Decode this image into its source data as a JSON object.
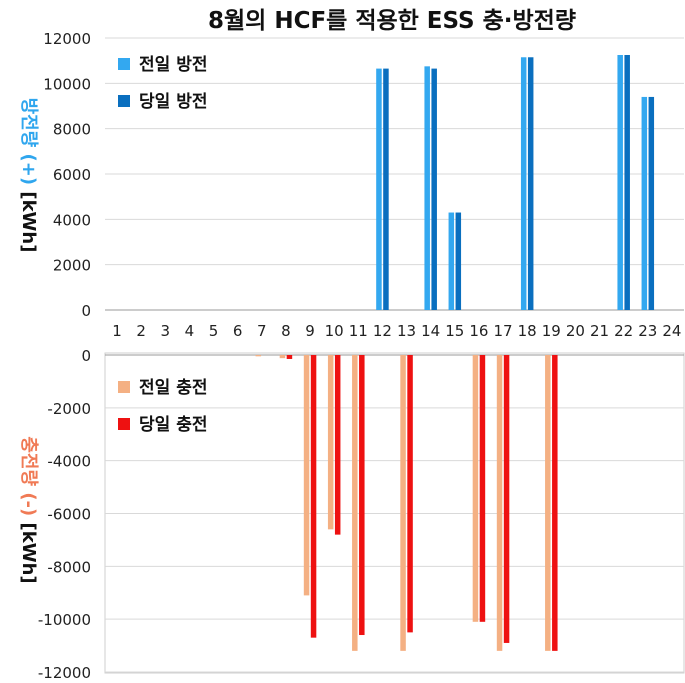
{
  "chart_data": {
    "title": "8월의 HCF를 적용한 ESS 충·방전량",
    "categories": [
      "1",
      "2",
      "3",
      "4",
      "5",
      "6",
      "7",
      "8",
      "9",
      "10",
      "11",
      "12",
      "13",
      "14",
      "15",
      "16",
      "17",
      "18",
      "19",
      "20",
      "21",
      "22",
      "23",
      "24"
    ],
    "panels": [
      {
        "type": "bar",
        "ylabel_part1": "방전량",
        "ylabel_part2": "(+)",
        "ylabel_unit": "[kWh]",
        "ylim": [
          0,
          12000
        ],
        "yticks": [
          0,
          2000,
          4000,
          6000,
          8000,
          10000,
          12000
        ],
        "legend_position": "top-left",
        "colors": {
          "ylabel": "#2fa6ee"
        },
        "series": [
          {
            "name": "전일 방전",
            "color": "#33a8f0",
            "values": [
              0,
              0,
              0,
              0,
              0,
              0,
              0,
              0,
              0,
              0,
              0,
              10650,
              0,
              10750,
              4300,
              0,
              0,
              11150,
              0,
              0,
              0,
              11250,
              9400,
              0
            ]
          },
          {
            "name": "당일 방전",
            "color": "#0a6fbf",
            "values": [
              0,
              0,
              0,
              0,
              0,
              0,
              0,
              0,
              0,
              0,
              0,
              10650,
              0,
              10650,
              4300,
              0,
              0,
              11150,
              0,
              0,
              0,
              11250,
              9400,
              0
            ]
          }
        ]
      },
      {
        "type": "bar",
        "ylabel_part1": "충전량",
        "ylabel_part2": "(-)",
        "ylabel_unit": "[kWh]",
        "ylim": [
          -12000,
          0
        ],
        "yticks": [
          0,
          -2000,
          -4000,
          -6000,
          -8000,
          -10000,
          -12000
        ],
        "legend_position": "top-left",
        "colors": {
          "ylabel": "#f07a55"
        },
        "series": [
          {
            "name": "전일 충전",
            "color": "#f4b083",
            "values": [
              0,
              0,
              0,
              0,
              0,
              0,
              -50,
              -120,
              -9100,
              -6600,
              -11200,
              0,
              -11200,
              0,
              0,
              -10100,
              -11200,
              0,
              -11200,
              0,
              0,
              0,
              0,
              0
            ]
          },
          {
            "name": "당일 충전",
            "color": "#ee1111",
            "values": [
              0,
              0,
              0,
              0,
              0,
              0,
              0,
              -150,
              -10700,
              -6800,
              -10600,
              0,
              -10500,
              0,
              0,
              -10100,
              -10900,
              0,
              -11200,
              0,
              0,
              0,
              0,
              0
            ]
          }
        ]
      }
    ]
  }
}
